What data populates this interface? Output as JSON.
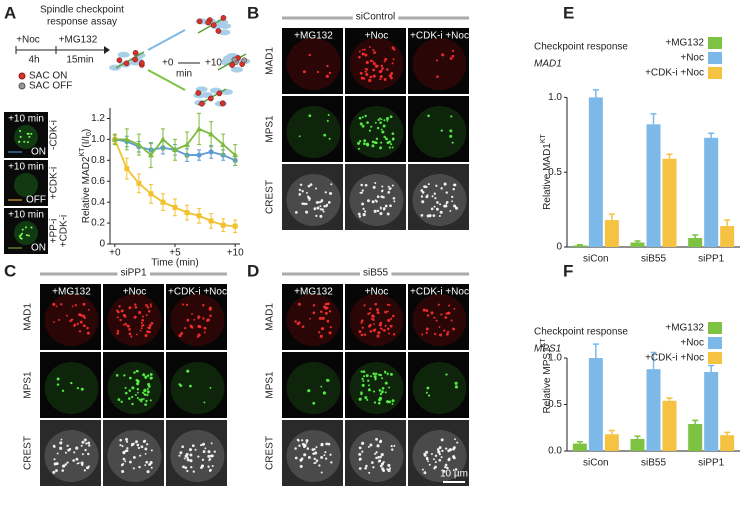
{
  "figure": {
    "panels": [
      "A",
      "B",
      "C",
      "D",
      "E",
      "F"
    ]
  },
  "diagram_a": {
    "title": [
      "Spindle checkpoint",
      "response assay"
    ],
    "noc": "+Noc",
    "mg132": "+MG132",
    "t1": "4h",
    "t2": "15min",
    "sac_on": "SAC ON",
    "sac_off": "SAC OFF",
    "plus0": "+0",
    "plus10": "+10",
    "min": "min",
    "thumbs": [
      {
        "time": "+10 min",
        "state": "ON",
        "condition": [
          "-CDK-i"
        ]
      },
      {
        "time": "+10 min",
        "state": "OFF",
        "condition": [
          "+CDK-i"
        ]
      },
      {
        "time": "+10 min",
        "state": "ON",
        "condition": [
          "+PP-i",
          "+CDK-i"
        ]
      }
    ]
  },
  "micrographs": [
    {
      "title": "siControl",
      "columns": [
        "+MG132",
        "+Noc",
        "+CDK-i +Noc"
      ],
      "rows": [
        "MAD1",
        "MPS1",
        "CREST"
      ]
    },
    {
      "title": "siPP1",
      "columns": [
        "+MG132",
        "+Noc",
        "+CDK-i +Noc"
      ],
      "rows": [
        "MAD1",
        "MPS1",
        "CREST"
      ]
    },
    {
      "title": "siB55",
      "columns": [
        "+MG132",
        "+Noc",
        "+CDK-i +Noc"
      ],
      "rows": [
        "MAD1",
        "MPS1",
        "CREST"
      ],
      "scale_bar": "10 µm"
    }
  ],
  "chart_data": [
    {
      "type": "line",
      "ylabel": "Relative MAD2",
      "ylabel_sup": "KT",
      "ylabel_tail": "(I/I",
      "ylabel_sub": "0",
      "ylabel_end": ")",
      "xlabel": "Time (min)",
      "x": [
        0,
        1,
        2,
        3,
        4,
        5,
        6,
        7,
        8,
        9,
        10
      ],
      "xlim": [
        -0.4,
        10.4
      ],
      "xticks": [
        {
          "value": 0,
          "label": "+0"
        },
        {
          "value": 5,
          "label": "+5"
        },
        {
          "value": 10,
          "label": "+10"
        }
      ],
      "ylim": [
        0,
        1.3
      ],
      "yticks": [
        0,
        0.2,
        0.4,
        0.6,
        0.8,
        {
          "value": 1,
          "label": "1.0"
        },
        1.2
      ],
      "series": [
        {
          "name": "-CDK-i",
          "color": "#5b9bd5",
          "marker": "circle",
          "values": [
            1.0,
            0.98,
            0.93,
            0.9,
            0.92,
            0.9,
            0.85,
            0.85,
            0.88,
            0.85,
            0.8
          ],
          "errors": [
            0.04,
            0.05,
            0.05,
            0.06,
            0.06,
            0.05,
            0.06,
            0.05,
            0.06,
            0.05,
            0.05
          ]
        },
        {
          "name": "+CDK-i",
          "color": "#f2c12e",
          "marker": "square",
          "values": [
            1.0,
            0.72,
            0.58,
            0.48,
            0.4,
            0.35,
            0.3,
            0.27,
            0.22,
            0.18,
            0.17
          ],
          "errors": [
            0.04,
            0.1,
            0.09,
            0.09,
            0.08,
            0.08,
            0.07,
            0.07,
            0.07,
            0.06,
            0.06
          ]
        },
        {
          "name": "+PP-i +CDK-i",
          "color": "#7dbb3c",
          "marker": "triangle",
          "values": [
            1.0,
            1.0,
            0.95,
            0.85,
            1.0,
            0.9,
            0.95,
            1.1,
            1.05,
            0.95,
            0.85
          ],
          "errors": [
            0.05,
            0.1,
            0.1,
            0.12,
            0.1,
            0.1,
            0.12,
            0.15,
            0.12,
            0.1,
            0.1
          ]
        }
      ]
    },
    {
      "type": "bar",
      "title": "Checkpoint response",
      "subtitle": "MAD1",
      "ylabel": "Relative MAD1",
      "ylabel_sup": "KT",
      "categories": [
        "siCon",
        "siB55",
        "siPP1"
      ],
      "ylim": [
        0,
        1.25
      ],
      "yticks": [
        0,
        0.5,
        {
          "value": 1,
          "label": "1.0"
        }
      ],
      "series": [
        {
          "name": "+MG132",
          "color": "#7dc242",
          "values": [
            0.01,
            0.03,
            0.06
          ],
          "errors": [
            0.005,
            0.01,
            0.02
          ]
        },
        {
          "name": "+Noc",
          "color": "#7cb8e8",
          "values": [
            1.0,
            0.82,
            0.73
          ],
          "errors": [
            0.05,
            0.07,
            0.03
          ]
        },
        {
          "name": "+CDK-i +Noc",
          "color": "#f5c242",
          "values": [
            0.18,
            0.59,
            0.14
          ],
          "errors": [
            0.04,
            0.03,
            0.04
          ]
        }
      ]
    },
    {
      "type": "bar",
      "title": "Checkpoint response",
      "subtitle": "MPS1",
      "ylabel": "Relative MPS1",
      "ylabel_sup": "KT",
      "categories": [
        "siCon",
        "siB55",
        "siPP1"
      ],
      "ylim": [
        0,
        1.14
      ],
      "yticks": [
        {
          "value": 0,
          "label": "0.0"
        },
        0.5,
        {
          "value": 1,
          "label": "1.0"
        }
      ],
      "series": [
        {
          "name": "+MG132",
          "color": "#7dc242",
          "values": [
            0.08,
            0.13,
            0.29
          ],
          "errors": [
            0.02,
            0.03,
            0.04
          ]
        },
        {
          "name": "+Noc",
          "color": "#7cb8e8",
          "values": [
            1.0,
            0.88,
            0.85
          ],
          "errors": [
            0.15,
            0.18,
            0.07
          ]
        },
        {
          "name": "+CDK-i +Noc",
          "color": "#f5c242",
          "values": [
            0.18,
            0.54,
            0.17
          ],
          "errors": [
            0.04,
            0.03,
            0.03
          ]
        }
      ]
    }
  ]
}
